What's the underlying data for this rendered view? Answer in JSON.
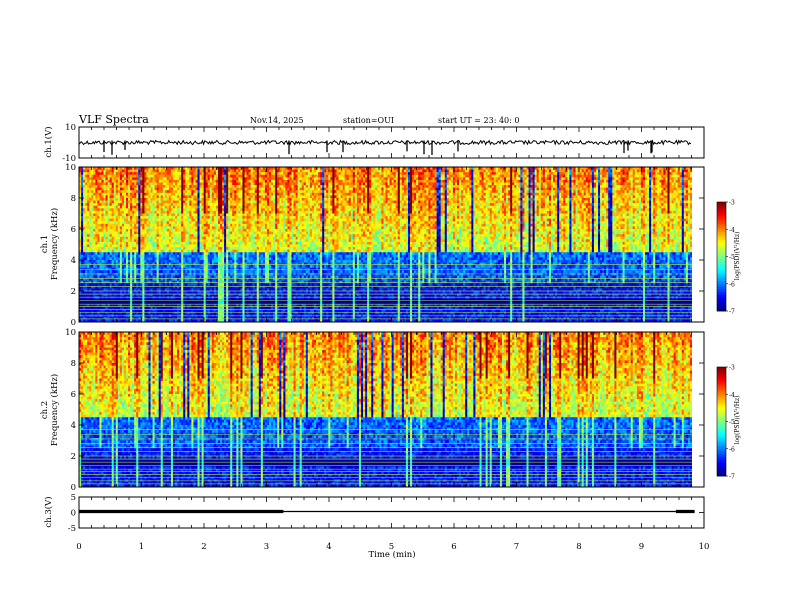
{
  "header": {
    "title": "VLF Spectra",
    "date": "Nov.14, 2025",
    "station": "station=OUI",
    "start": "start  UT =   23: 40: 0"
  },
  "chart_data": [
    {
      "type": "line",
      "id": "ch1-waveform",
      "ylabel": "ch.1(V)",
      "ylim": [
        -10,
        10
      ],
      "yticks": [
        "10",
        "-10"
      ],
      "baseline": 0,
      "note": "noisy waveform with occasional negative spikes"
    },
    {
      "type": "heatmap",
      "id": "ch1-spectrogram",
      "ylabel_channel": "ch.1",
      "ylabel": "Frequency (kHz)",
      "ylim": [
        0,
        10
      ],
      "yticks": [
        "0",
        "2",
        "4",
        "6",
        "8",
        "10"
      ],
      "colorbar": {
        "label": "log(PSD)(V²/Hz)",
        "range": [
          -7,
          -3
        ],
        "ticks": [
          "-3",
          "-4",
          "-5",
          "-6",
          "-7"
        ]
      }
    },
    {
      "type": "heatmap",
      "id": "ch2-spectrogram",
      "ylabel_channel": "ch.2",
      "ylabel": "Frequency (kHz)",
      "ylim": [
        0,
        10
      ],
      "yticks": [
        "0",
        "2",
        "4",
        "6",
        "8",
        "10"
      ],
      "colorbar": {
        "label": "log(PSD)(V²/Hz)",
        "range": [
          -7,
          -3
        ],
        "ticks": [
          "-3",
          "-4",
          "-5",
          "-6",
          "-7"
        ]
      }
    },
    {
      "type": "line",
      "id": "ch3-signal",
      "ylabel": "ch.3(V)",
      "ylim": [
        -5,
        5
      ],
      "yticks": [
        "5",
        "0",
        "-5"
      ],
      "segments": [
        {
          "x_start": 0.0,
          "x_end": 3.27,
          "y": 0,
          "style": "thick"
        },
        {
          "x_start": 3.27,
          "x_end": 9.55,
          "y": 0,
          "style": "thin"
        },
        {
          "x_start": 9.55,
          "x_end": 9.85,
          "y": 0,
          "style": "thick"
        }
      ]
    }
  ],
  "xaxis": {
    "label": "Time (min)",
    "range": [
      0,
      10
    ],
    "ticks": [
      "0",
      "1",
      "2",
      "3",
      "4",
      "5",
      "6",
      "7",
      "8",
      "9",
      "10"
    ]
  }
}
